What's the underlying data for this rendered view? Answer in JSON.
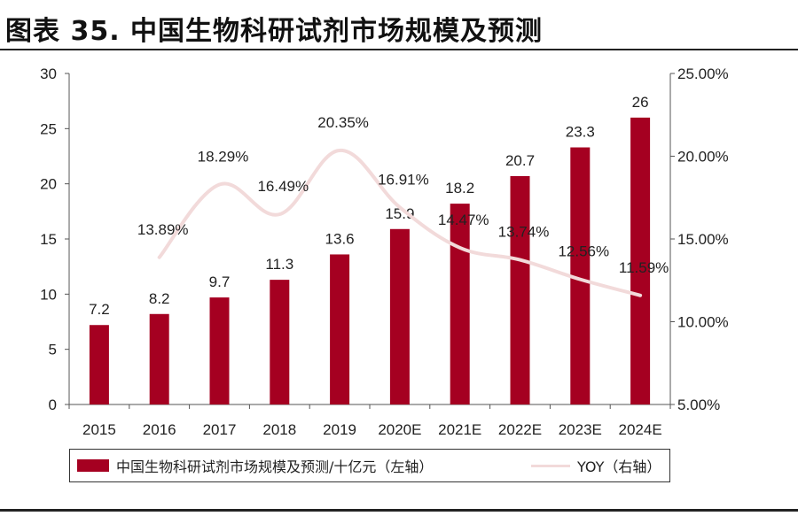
{
  "title": "图表 35.  中国生物科研试剂市场规模及预测",
  "chart_data": {
    "type": "bar",
    "categories": [
      "2015",
      "2016",
      "2017",
      "2018",
      "2019",
      "2020E",
      "2021E",
      "2022E",
      "2023E",
      "2024E"
    ],
    "series": [
      {
        "name": "中国生物科研试剂市场规模及预测/十亿元（左轴）",
        "type": "bar",
        "axis": "left",
        "values": [
          7.2,
          8.2,
          9.7,
          11.3,
          13.6,
          15.9,
          18.2,
          20.7,
          23.3,
          26
        ],
        "labels": [
          "7.2",
          "8.2",
          "9.7",
          "11.3",
          "13.6",
          "15.9",
          "18.2",
          "20.7",
          "23.3",
          "26"
        ],
        "color": "#a50021"
      },
      {
        "name": "YOY（右轴）",
        "type": "line",
        "axis": "right",
        "values": [
          null,
          13.89,
          18.29,
          16.49,
          20.35,
          16.91,
          14.47,
          13.74,
          12.56,
          11.59
        ],
        "labels": [
          "",
          "13.89%",
          "18.29%",
          "16.49%",
          "20.35%",
          "16.91%",
          "14.47%",
          "13.74%",
          "12.56%",
          "11.59%"
        ],
        "color": "#f2dada"
      }
    ],
    "y_left": {
      "min": 0,
      "max": 30,
      "ticks": [
        "0",
        "5",
        "10",
        "15",
        "20",
        "25",
        "30"
      ]
    },
    "y_right": {
      "min": 5,
      "max": 25,
      "ticks": [
        "5.00%",
        "10.00%",
        "15.00%",
        "20.00%",
        "25.00%"
      ]
    },
    "grid": false,
    "legend_position": "bottom"
  }
}
